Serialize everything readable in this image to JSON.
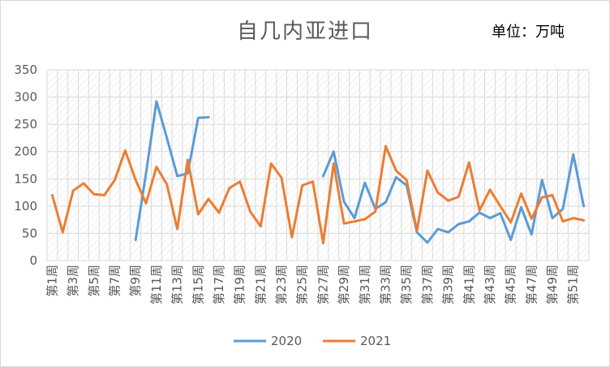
{
  "title": "自几内亚进口",
  "unit_label": "单位：万吨",
  "colors": {
    "2020": "#5b9bd5",
    "2021": "#ed7d31"
  },
  "chart_data": {
    "type": "line",
    "title": "自几内亚进口",
    "xlabel": "",
    "ylabel": "",
    "ylim": [
      0,
      350
    ],
    "yticks": [
      0,
      50,
      100,
      150,
      200,
      250,
      300,
      350
    ],
    "grid": true,
    "legend": "bottom",
    "categories": [
      "第1周",
      "第2周",
      "第3周",
      "第4周",
      "第5周",
      "第6周",
      "第7周",
      "第8周",
      "第9周",
      "第10周",
      "第11周",
      "第12周",
      "第13周",
      "第14周",
      "第15周",
      "第16周",
      "第17周",
      "第18周",
      "第19周",
      "第20周",
      "第21周",
      "第22周",
      "第23周",
      "第24周",
      "第25周",
      "第26周",
      "第27周",
      "第28周",
      "第29周",
      "第30周",
      "第31周",
      "第32周",
      "第33周",
      "第34周",
      "第35周",
      "第36周",
      "第37周",
      "第38周",
      "第39周",
      "第40周",
      "第41周",
      "第42周",
      "第43周",
      "第44周",
      "第45周",
      "第46周",
      "第47周",
      "第48周",
      "第49周",
      "第50周",
      "第51周",
      "第52周"
    ],
    "tick_labels": [
      "第1周",
      "第3周",
      "第5周",
      "第7周",
      "第9周",
      "第11周",
      "第13周",
      "第15周",
      "第17周",
      "第19周",
      "第21周",
      "第23周",
      "第25周",
      "第27周",
      "第29周",
      "第31周",
      "第33周",
      "第35周",
      "第37周",
      "第39周",
      "第41周",
      "第43周",
      "第45周",
      "第47周",
      "第49周",
      "第51周"
    ],
    "series": [
      {
        "name": "2020",
        "values": [
          null,
          null,
          null,
          null,
          null,
          null,
          null,
          null,
          38,
          160,
          292,
          225,
          155,
          160,
          262,
          263,
          null,
          null,
          null,
          null,
          null,
          null,
          null,
          null,
          null,
          null,
          155,
          200,
          108,
          78,
          143,
          95,
          107,
          153,
          138,
          52,
          33,
          58,
          52,
          67,
          72,
          88,
          78,
          87,
          38,
          98,
          48,
          148,
          78,
          95,
          195,
          100
        ]
      },
      {
        "name": "2021",
        "values": [
          120,
          52,
          128,
          142,
          122,
          120,
          148,
          202,
          148,
          105,
          172,
          140,
          58,
          185,
          85,
          113,
          88,
          133,
          145,
          90,
          63,
          178,
          152,
          43,
          138,
          145,
          32,
          178,
          68,
          72,
          76,
          90,
          210,
          165,
          148,
          55,
          165,
          125,
          110,
          117,
          180,
          92,
          130,
          100,
          70,
          123,
          77,
          116,
          120,
          72,
          78,
          74
        ]
      }
    ]
  }
}
